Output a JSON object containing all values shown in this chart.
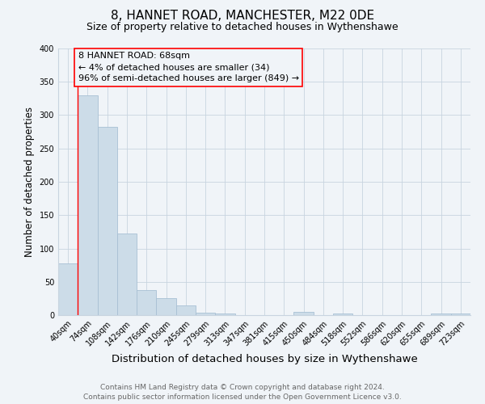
{
  "title": "8, HANNET ROAD, MANCHESTER, M22 0DE",
  "subtitle": "Size of property relative to detached houses in Wythenshawe",
  "xlabel": "Distribution of detached houses by size in Wythenshawe",
  "ylabel": "Number of detached properties",
  "bar_labels": [
    "40sqm",
    "74sqm",
    "108sqm",
    "142sqm",
    "176sqm",
    "210sqm",
    "245sqm",
    "279sqm",
    "313sqm",
    "347sqm",
    "381sqm",
    "415sqm",
    "450sqm",
    "484sqm",
    "518sqm",
    "552sqm",
    "586sqm",
    "620sqm",
    "655sqm",
    "689sqm",
    "723sqm"
  ],
  "bar_values": [
    77,
    330,
    283,
    122,
    37,
    25,
    14,
    4,
    3,
    0,
    0,
    0,
    5,
    0,
    3,
    0,
    0,
    0,
    0,
    3,
    2
  ],
  "bar_color": "#ccdce8",
  "bar_edge_color": "#a8c0d4",
  "ylim": [
    0,
    400
  ],
  "yticks": [
    0,
    50,
    100,
    150,
    200,
    250,
    300,
    350,
    400
  ],
  "annotation_box_text": "8 HANNET ROAD: 68sqm\n← 4% of detached houses are smaller (34)\n96% of semi-detached houses are larger (849) →",
  "footer_line1": "Contains HM Land Registry data © Crown copyright and database right 2024.",
  "footer_line2": "Contains public sector information licensed under the Open Government Licence v3.0.",
  "bg_color": "#f0f4f8",
  "grid_color": "#c8d4e0",
  "title_fontsize": 11,
  "subtitle_fontsize": 9,
  "xlabel_fontsize": 9.5,
  "ylabel_fontsize": 8.5,
  "tick_fontsize": 7,
  "annotation_fontsize": 8,
  "footer_fontsize": 6.5
}
